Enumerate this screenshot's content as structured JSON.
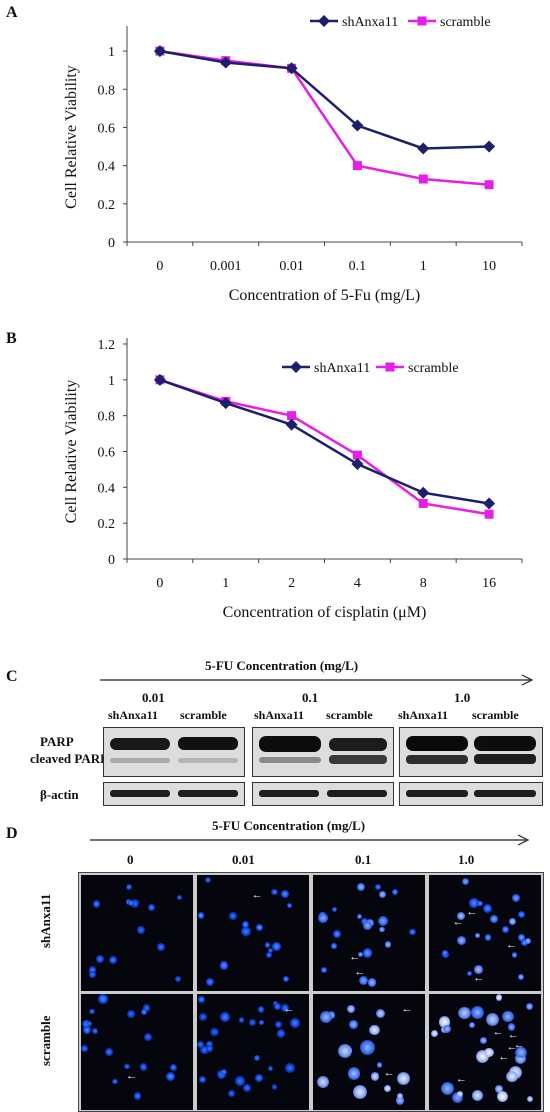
{
  "panels": {
    "A": "A",
    "B": "B",
    "C": "C",
    "D": "D"
  },
  "chart_data": [
    {
      "type": "line",
      "panel": "A",
      "categories": [
        "0",
        "0.001",
        "0.01",
        "0.1",
        "1",
        "10"
      ],
      "xlabel": "Concentration of 5-Fu (mg/L)",
      "ylabel": "Cell Relative Viability",
      "ylim": [
        0,
        1.1
      ],
      "yticks": [
        "0",
        "0.2",
        "0.4",
        "0.6",
        "0.8",
        "1"
      ],
      "legend_position": "top-right",
      "series": [
        {
          "name": "shAnxa11",
          "color": "#1a1f6e",
          "marker": "diamond",
          "values": [
            1.0,
            0.94,
            0.91,
            0.61,
            0.49,
            0.5
          ]
        },
        {
          "name": "scramble",
          "color": "#e61ee6",
          "marker": "square",
          "values": [
            1.0,
            0.95,
            0.91,
            0.4,
            0.33,
            0.3
          ]
        }
      ]
    },
    {
      "type": "line",
      "panel": "B",
      "categories": [
        "0",
        "1",
        "2",
        "4",
        "8",
        "16"
      ],
      "xlabel": "Concentration of cisplatin (μM)",
      "ylabel": "Cell Relative Viability",
      "ylim": [
        0,
        1.2
      ],
      "yticks": [
        "0",
        "0.2",
        "0.4",
        "0.6",
        "0.8",
        "1",
        "1.2"
      ],
      "legend_position": "top-right",
      "series": [
        {
          "name": "shAnxa11",
          "color": "#1a1f6e",
          "marker": "diamond",
          "values": [
            1.0,
            0.87,
            0.75,
            0.53,
            0.37,
            0.31
          ]
        },
        {
          "name": "scramble",
          "color": "#e61ee6",
          "marker": "square",
          "values": [
            1.0,
            0.88,
            0.8,
            0.58,
            0.31,
            0.25
          ]
        }
      ]
    }
  ],
  "western_blot": {
    "title": "5-FU Concentration (mg/L)",
    "concentrations": [
      "0.01",
      "0.1",
      "1.0"
    ],
    "lanes": [
      "shAnxa11",
      "scramble"
    ],
    "bands": [
      "PARP",
      "cleaved PARP",
      "β-actin"
    ]
  },
  "microscopy": {
    "title": "5-FU Concentration (mg/L)",
    "concentrations": [
      "0",
      "0.01",
      "0.1",
      "1.0"
    ],
    "rows": [
      "shAnxa11",
      "scramble"
    ]
  }
}
